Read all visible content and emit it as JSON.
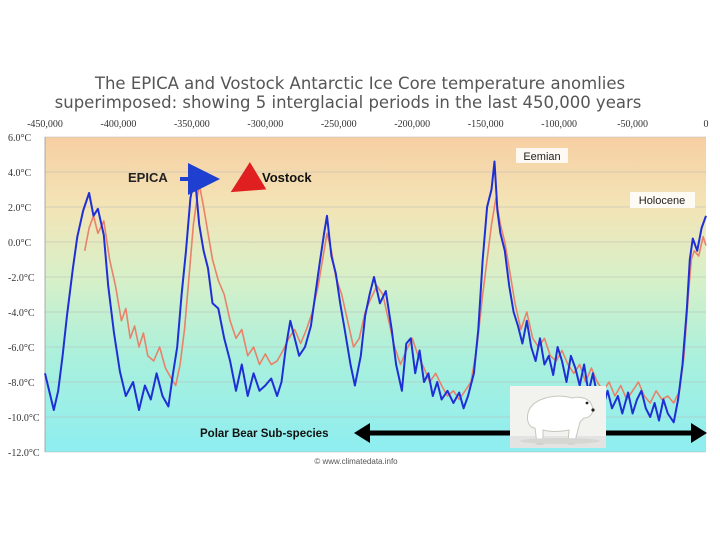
{
  "chart_data": {
    "type": "line",
    "title_line1": "The EPICA and Vostock Antarctic Ice Core temperature anomlies",
    "title_line2": "superimposed:  showing 5 interglacial periods in the last 450,000 years",
    "x_tick_labels": [
      "-450,000",
      "-400,000",
      "-350,000",
      "-300,000",
      "-250,000",
      "-200,000",
      "-150,000",
      "-100,000",
      "-50,000",
      "0"
    ],
    "x_ticks": [
      -450000,
      -400000,
      -350000,
      -300000,
      -250000,
      -200000,
      -150000,
      -100000,
      -50000,
      0
    ],
    "y_tick_labels": [
      "6.0°C",
      "4.0°C",
      "2.0°C",
      "0.0°C",
      "-2.0°C",
      "-4.0°C",
      "-6.0°C",
      "-8.0°C",
      "-10.0°C",
      "-12.0°C"
    ],
    "y_ticks": [
      6,
      4,
      2,
      0,
      -2,
      -4,
      -6,
      -8,
      -10,
      -12
    ],
    "xlim": [
      -450000,
      0
    ],
    "ylim": [
      -12,
      6
    ],
    "series": [
      {
        "name": "EPICA",
        "color": "#1f2fd6",
        "points": [
          [
            -450000,
            -7.5
          ],
          [
            -448000,
            -8.2
          ],
          [
            -444000,
            -9.6
          ],
          [
            -441000,
            -8.5
          ],
          [
            -438000,
            -6.5
          ],
          [
            -435000,
            -4.2
          ],
          [
            -431000,
            -1.5
          ],
          [
            -428000,
            0.3
          ],
          [
            -424000,
            1.8
          ],
          [
            -420000,
            2.8
          ],
          [
            -417000,
            1.5
          ],
          [
            -414000,
            1.9
          ],
          [
            -410000,
            0.4
          ],
          [
            -407000,
            -2.5
          ],
          [
            -403000,
            -5.2
          ],
          [
            -399000,
            -7.4
          ],
          [
            -395000,
            -8.8
          ],
          [
            -390000,
            -8.0
          ],
          [
            -386000,
            -9.6
          ],
          [
            -382000,
            -8.2
          ],
          [
            -378000,
            -9.0
          ],
          [
            -374000,
            -7.5
          ],
          [
            -370000,
            -8.8
          ],
          [
            -366000,
            -9.4
          ],
          [
            -363000,
            -7.6
          ],
          [
            -360000,
            -6.0
          ],
          [
            -357000,
            -3.0
          ],
          [
            -354000,
            -0.5
          ],
          [
            -351000,
            2.5
          ],
          [
            -348000,
            3.8
          ],
          [
            -345000,
            1.0
          ],
          [
            -342000,
            -0.5
          ],
          [
            -339000,
            -1.5
          ],
          [
            -336000,
            -3.5
          ],
          [
            -332000,
            -3.8
          ],
          [
            -328000,
            -5.5
          ],
          [
            -324000,
            -6.8
          ],
          [
            -320000,
            -8.5
          ],
          [
            -316000,
            -7.0
          ],
          [
            -312000,
            -8.8
          ],
          [
            -308000,
            -7.5
          ],
          [
            -304000,
            -8.5
          ],
          [
            -300000,
            -8.2
          ],
          [
            -296000,
            -7.8
          ],
          [
            -292000,
            -8.8
          ],
          [
            -289000,
            -8.0
          ],
          [
            -286000,
            -6.0
          ],
          [
            -283000,
            -4.5
          ],
          [
            -280000,
            -5.5
          ],
          [
            -277000,
            -6.5
          ],
          [
            -273000,
            -6.0
          ],
          [
            -269000,
            -4.8
          ],
          [
            -266000,
            -3.0
          ],
          [
            -263000,
            -1.2
          ],
          [
            -260000,
            0.5
          ],
          [
            -258000,
            1.5
          ],
          [
            -255000,
            -0.8
          ],
          [
            -252000,
            -1.8
          ],
          [
            -249000,
            -3.5
          ],
          [
            -246000,
            -5.0
          ],
          [
            -242000,
            -7.0
          ],
          [
            -239000,
            -8.2
          ],
          [
            -235000,
            -6.5
          ],
          [
            -232000,
            -4.2
          ],
          [
            -229000,
            -3.0
          ],
          [
            -226000,
            -2.0
          ],
          [
            -222000,
            -3.5
          ],
          [
            -218000,
            -2.8
          ],
          [
            -214000,
            -5.0
          ],
          [
            -211000,
            -7.0
          ],
          [
            -207000,
            -8.5
          ],
          [
            -204000,
            -5.8
          ],
          [
            -201000,
            -5.5
          ],
          [
            -198000,
            -7.5
          ],
          [
            -195000,
            -6.2
          ],
          [
            -192000,
            -8.0
          ],
          [
            -189000,
            -7.5
          ],
          [
            -186000,
            -8.8
          ],
          [
            -183000,
            -8.0
          ],
          [
            -180000,
            -9.0
          ],
          [
            -176000,
            -8.5
          ],
          [
            -172000,
            -9.2
          ],
          [
            -168000,
            -8.6
          ],
          [
            -165000,
            -9.5
          ],
          [
            -162000,
            -8.8
          ],
          [
            -158000,
            -7.5
          ],
          [
            -155000,
            -5.0
          ],
          [
            -152000,
            -1.0
          ],
          [
            -149000,
            2.0
          ],
          [
            -146000,
            3.0
          ],
          [
            -144000,
            4.6
          ],
          [
            -142000,
            1.8
          ],
          [
            -140000,
            0.5
          ],
          [
            -137000,
            -0.5
          ],
          [
            -134000,
            -2.5
          ],
          [
            -131000,
            -4.0
          ],
          [
            -128000,
            -4.8
          ],
          [
            -125000,
            -5.8
          ],
          [
            -122000,
            -4.5
          ],
          [
            -119000,
            -6.0
          ],
          [
            -116000,
            -6.8
          ],
          [
            -113000,
            -5.5
          ],
          [
            -110000,
            -7.0
          ],
          [
            -107000,
            -6.5
          ],
          [
            -104000,
            -7.6
          ],
          [
            -101000,
            -6.0
          ],
          [
            -98000,
            -6.8
          ],
          [
            -95000,
            -8.0
          ],
          [
            -92000,
            -6.5
          ],
          [
            -89000,
            -7.2
          ],
          [
            -86000,
            -8.2
          ],
          [
            -83000,
            -7.0
          ],
          [
            -80000,
            -8.6
          ],
          [
            -77000,
            -7.5
          ],
          [
            -74000,
            -8.8
          ],
          [
            -70000,
            -9.4
          ],
          [
            -67000,
            -8.5
          ],
          [
            -64000,
            -9.5
          ],
          [
            -60000,
            -8.8
          ],
          [
            -57000,
            -9.8
          ],
          [
            -53000,
            -8.6
          ],
          [
            -50000,
            -9.8
          ],
          [
            -47000,
            -9.0
          ],
          [
            -44000,
            -8.5
          ],
          [
            -41000,
            -9.5
          ],
          [
            -38000,
            -10.0
          ],
          [
            -35000,
            -9.2
          ],
          [
            -32000,
            -10.2
          ],
          [
            -29000,
            -9.0
          ],
          [
            -26000,
            -9.8
          ],
          [
            -22000,
            -10.3
          ],
          [
            -19000,
            -9.0
          ],
          [
            -16000,
            -7.0
          ],
          [
            -13000,
            -3.8
          ],
          [
            -11000,
            -1.0
          ],
          [
            -9000,
            0.2
          ],
          [
            -6000,
            -0.5
          ],
          [
            -3000,
            0.8
          ],
          [
            0,
            1.5
          ]
        ]
      },
      {
        "name": "Vostock",
        "color": "#e8826a",
        "points": [
          [
            -423000,
            -0.5
          ],
          [
            -420000,
            0.8
          ],
          [
            -417000,
            1.5
          ],
          [
            -414000,
            0.5
          ],
          [
            -410000,
            1.2
          ],
          [
            -406000,
            -1.0
          ],
          [
            -402000,
            -2.5
          ],
          [
            -398000,
            -4.5
          ],
          [
            -395000,
            -3.8
          ],
          [
            -392000,
            -5.5
          ],
          [
            -389000,
            -4.8
          ],
          [
            -386000,
            -6.0
          ],
          [
            -383000,
            -5.2
          ],
          [
            -380000,
            -6.5
          ],
          [
            -376000,
            -6.8
          ],
          [
            -372000,
            -6.0
          ],
          [
            -368000,
            -7.2
          ],
          [
            -364000,
            -7.8
          ],
          [
            -361000,
            -8.2
          ],
          [
            -358000,
            -7.0
          ],
          [
            -355000,
            -5.0
          ],
          [
            -352000,
            -2.0
          ],
          [
            -349000,
            1.0
          ],
          [
            -347000,
            2.2
          ],
          [
            -345000,
            3.3
          ],
          [
            -342000,
            2.0
          ],
          [
            -339000,
            0.5
          ],
          [
            -336000,
            -1.0
          ],
          [
            -332000,
            -2.2
          ],
          [
            -328000,
            -3.0
          ],
          [
            -324000,
            -4.5
          ],
          [
            -320000,
            -5.5
          ],
          [
            -316000,
            -5.0
          ],
          [
            -312000,
            -6.5
          ],
          [
            -308000,
            -6.0
          ],
          [
            -304000,
            -7.0
          ],
          [
            -300000,
            -6.4
          ],
          [
            -296000,
            -7.0
          ],
          [
            -292000,
            -6.8
          ],
          [
            -288000,
            -6.2
          ],
          [
            -284000,
            -5.5
          ],
          [
            -280000,
            -5.0
          ],
          [
            -276000,
            -5.8
          ],
          [
            -272000,
            -5.0
          ],
          [
            -268000,
            -4.0
          ],
          [
            -264000,
            -2.5
          ],
          [
            -261000,
            -1.0
          ],
          [
            -258000,
            0.5
          ],
          [
            -255000,
            -0.5
          ],
          [
            -252000,
            -2.0
          ],
          [
            -248000,
            -3.0
          ],
          [
            -244000,
            -4.5
          ],
          [
            -240000,
            -6.0
          ],
          [
            -236000,
            -5.5
          ],
          [
            -232000,
            -4.0
          ],
          [
            -228000,
            -3.2
          ],
          [
            -224000,
            -2.5
          ],
          [
            -220000,
            -3.0
          ],
          [
            -216000,
            -4.5
          ],
          [
            -212000,
            -6.0
          ],
          [
            -208000,
            -7.0
          ],
          [
            -204000,
            -6.2
          ],
          [
            -200000,
            -5.5
          ],
          [
            -196000,
            -6.5
          ],
          [
            -192000,
            -7.2
          ],
          [
            -188000,
            -8.0
          ],
          [
            -184000,
            -7.5
          ],
          [
            -180000,
            -8.2
          ],
          [
            -176000,
            -8.8
          ],
          [
            -172000,
            -8.5
          ],
          [
            -168000,
            -9.0
          ],
          [
            -164000,
            -8.5
          ],
          [
            -160000,
            -8.0
          ],
          [
            -156000,
            -6.0
          ],
          [
            -152000,
            -3.0
          ],
          [
            -149000,
            -1.0
          ],
          [
            -146000,
            1.0
          ],
          [
            -143000,
            2.5
          ],
          [
            -140000,
            1.0
          ],
          [
            -137000,
            0.0
          ],
          [
            -134000,
            -1.5
          ],
          [
            -130000,
            -3.5
          ],
          [
            -126000,
            -5.0
          ],
          [
            -122000,
            -4.0
          ],
          [
            -118000,
            -5.5
          ],
          [
            -114000,
            -6.0
          ],
          [
            -110000,
            -5.5
          ],
          [
            -106000,
            -6.5
          ],
          [
            -102000,
            -6.8
          ],
          [
            -98000,
            -6.2
          ],
          [
            -94000,
            -7.0
          ],
          [
            -90000,
            -7.5
          ],
          [
            -86000,
            -7.0
          ],
          [
            -82000,
            -8.0
          ],
          [
            -78000,
            -7.2
          ],
          [
            -74000,
            -8.0
          ],
          [
            -70000,
            -8.5
          ],
          [
            -66000,
            -8.0
          ],
          [
            -62000,
            -8.8
          ],
          [
            -58000,
            -8.2
          ],
          [
            -54000,
            -9.0
          ],
          [
            -50000,
            -8.5
          ],
          [
            -46000,
            -8.0
          ],
          [
            -42000,
            -8.8
          ],
          [
            -38000,
            -9.2
          ],
          [
            -34000,
            -8.5
          ],
          [
            -30000,
            -9.0
          ],
          [
            -26000,
            -8.8
          ],
          [
            -22000,
            -9.2
          ],
          [
            -18000,
            -8.5
          ],
          [
            -15000,
            -6.5
          ],
          [
            -12000,
            -3.0
          ],
          [
            -10000,
            -1.0
          ],
          [
            -8000,
            -0.5
          ],
          [
            -5000,
            -0.8
          ],
          [
            -2000,
            0.3
          ],
          [
            0,
            -0.2
          ]
        ]
      }
    ],
    "annotations": {
      "epica_label": "EPICA",
      "vostock_label": "Vostock",
      "eemian_label": "Eemian",
      "holocene_label": "Holocene",
      "polar_bear_label": "Polar Bear Sub-species",
      "credit": "© www.climatedata.info"
    },
    "grid": true,
    "legend": "none"
  }
}
